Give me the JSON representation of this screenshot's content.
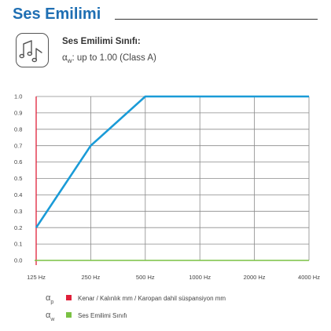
{
  "header": {
    "title": "Ses Emilimi"
  },
  "class_info": {
    "title": "Ses Emilimi Sınıfı:",
    "symbol": "α",
    "symbol_sub": "w",
    "value_text": ": up to 1.00 (Class A)"
  },
  "chart_data": {
    "type": "line",
    "categories": [
      "125 Hz",
      "250 Hz",
      "500 Hz",
      "1000 Hz",
      "2000 Hz",
      "4000 Hz"
    ],
    "yticks": [
      "0.0",
      "0.1",
      "0.2",
      "0.3",
      "0.4",
      "0.5",
      "0.6",
      "0.7",
      "0.8",
      "0.9",
      "1.0"
    ],
    "ylim": [
      0,
      1.0
    ],
    "grid": true,
    "series": [
      {
        "name": "Ses Emilimi Sınıfı",
        "color": "#1a9bd7",
        "values": [
          0.2,
          0.7,
          1.0,
          1.0,
          1.0,
          1.0
        ]
      }
    ],
    "axis_colors": {
      "x_axis": "#7ac143",
      "y_axis": "#e0203a"
    }
  },
  "legend": [
    {
      "symbol": "α",
      "sub": "p",
      "color": "#e0203a",
      "label": "Kenar / Kalınlık mm / Karopan dahil süspansiyon mm"
    },
    {
      "symbol": "α",
      "sub": "w",
      "color": "#7ac143",
      "label": "Ses Emilimi Sınıfı"
    }
  ]
}
